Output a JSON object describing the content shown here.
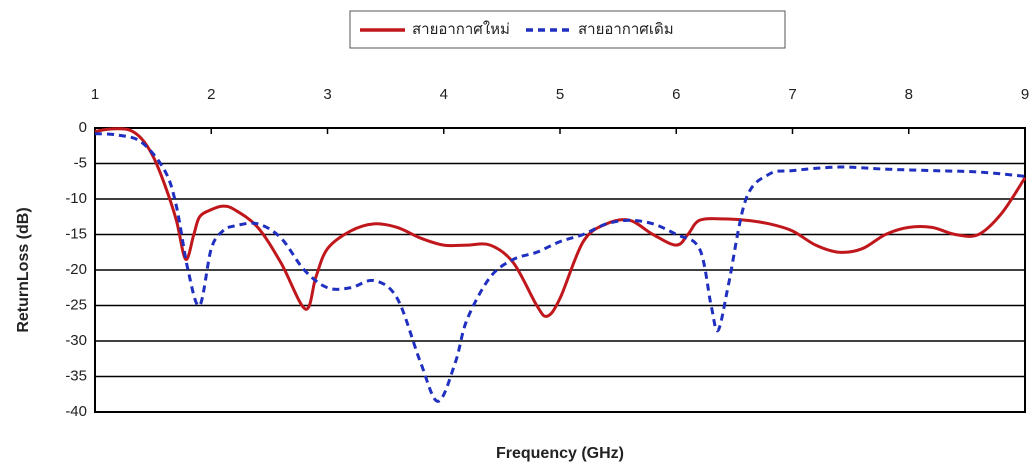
{
  "chart_data": {
    "type": "line",
    "xlabel": "Frequency (GHz)",
    "ylabel": "ReturnLoss (dB)",
    "xlim": [
      1,
      9
    ],
    "xticks": [
      1,
      2,
      3,
      4,
      5,
      6,
      7,
      8,
      9
    ],
    "ylim": [
      -40,
      0
    ],
    "yticks": [
      0,
      -5,
      -10,
      -15,
      -20,
      -25,
      -30,
      -35,
      -40
    ],
    "grid": true,
    "legend": "top",
    "series": [
      {
        "name": "สายอากาศใหม่",
        "color": "#c0171c",
        "dash": "solid",
        "x": [
          1.0,
          1.1,
          1.2,
          1.3,
          1.4,
          1.5,
          1.6,
          1.7,
          1.78,
          1.85,
          1.9,
          2.0,
          2.1,
          2.2,
          2.4,
          2.6,
          2.81,
          2.9,
          3.0,
          3.2,
          3.4,
          3.6,
          3.8,
          4.0,
          4.2,
          4.4,
          4.6,
          4.8,
          4.89,
          5.0,
          5.2,
          5.4,
          5.6,
          5.8,
          6.0,
          6.1,
          6.2,
          6.4,
          6.6,
          6.8,
          7.0,
          7.2,
          7.4,
          7.6,
          7.8,
          8.0,
          8.2,
          8.4,
          8.6,
          8.8,
          9.0
        ],
        "values": [
          -0.5,
          -0.2,
          -0.1,
          -0.3,
          -1.5,
          -4,
          -8,
          -13,
          -18.5,
          -15,
          -12.5,
          -11.5,
          -11,
          -11.5,
          -14,
          -19,
          -25.5,
          -21,
          -17,
          -14.5,
          -13.5,
          -14,
          -15.5,
          -16.5,
          -16.5,
          -16.5,
          -19,
          -25,
          -26.5,
          -24,
          -16,
          -13.5,
          -13,
          -15,
          -16.5,
          -15,
          -13,
          -12.8,
          -13,
          -13.5,
          -14.5,
          -16.5,
          -17.5,
          -17,
          -15,
          -14,
          -14,
          -15,
          -15,
          -12,
          -7
        ]
      },
      {
        "name": "สายอากาศเดิม",
        "color": "#1f2fbf",
        "dash": "dashed",
        "x": [
          1.0,
          1.2,
          1.4,
          1.6,
          1.7,
          1.8,
          1.9,
          2.0,
          2.1,
          2.2,
          2.4,
          2.6,
          2.8,
          3.0,
          3.2,
          3.4,
          3.6,
          3.8,
          3.95,
          4.1,
          4.2,
          4.4,
          4.6,
          4.8,
          5.0,
          5.2,
          5.4,
          5.6,
          5.8,
          6.0,
          6.2,
          6.3,
          6.36,
          6.45,
          6.6,
          6.8,
          7.0,
          7.4,
          7.8,
          8.2,
          8.6,
          9.0
        ],
        "values": [
          -0.8,
          -1,
          -2,
          -6,
          -11,
          -20,
          -25,
          -17,
          -14.5,
          -13.8,
          -13.5,
          -15.5,
          -20,
          -22.5,
          -22.5,
          -21.5,
          -24,
          -33,
          -38.5,
          -33,
          -27,
          -21,
          -18.5,
          -17.5,
          -16,
          -15,
          -13.5,
          -13,
          -13.5,
          -15,
          -17,
          -25,
          -28.5,
          -22,
          -10,
          -6.5,
          -6,
          -5.5,
          -5.8,
          -6,
          -6.2,
          -6.8
        ]
      }
    ]
  }
}
